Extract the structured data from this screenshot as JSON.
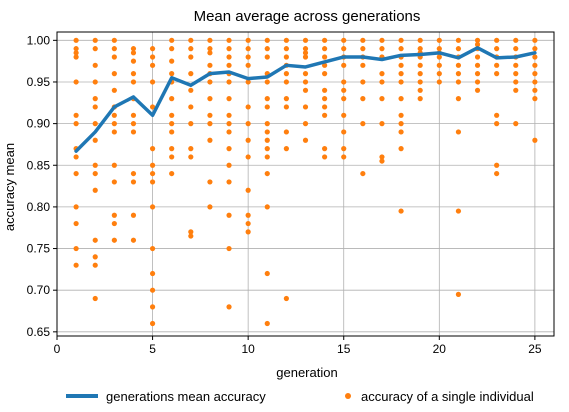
{
  "chart_data": {
    "type": "line",
    "title": "Mean average across generations",
    "xlabel": "generation",
    "ylabel": "accuracy mean",
    "xlim": [
      0,
      26
    ],
    "ylim": [
      0.645,
      1.01
    ],
    "xticks": [
      0,
      5,
      10,
      15,
      20,
      25
    ],
    "yticks": [
      0.65,
      0.7,
      0.75,
      0.8,
      0.85,
      0.9,
      0.95,
      1.0
    ],
    "xtick_labels": [
      "0",
      "5",
      "10",
      "15",
      "20",
      "25"
    ],
    "ytick_labels": [
      "0.65",
      "0.70",
      "0.75",
      "0.80",
      "0.85",
      "0.90",
      "0.95",
      "1.00"
    ],
    "grid": true,
    "legend": {
      "placement": "bottom",
      "entries": [
        "generations mean accuracy",
        "accuracy of a single individual"
      ]
    },
    "colors": {
      "mean_line": "#1f77b4",
      "individual": "#ff7f0e",
      "grid": "#b0b0b0"
    },
    "series": [
      {
        "name": "generations mean accuracy",
        "kind": "line",
        "x": [
          1,
          2,
          3,
          4,
          5,
          6,
          7,
          8,
          9,
          10,
          11,
          12,
          13,
          14,
          15,
          16,
          17,
          18,
          19,
          20,
          21,
          22,
          23,
          24,
          25
        ],
        "y": [
          0.867,
          0.89,
          0.92,
          0.932,
          0.91,
          0.955,
          0.946,
          0.96,
          0.962,
          0.954,
          0.956,
          0.97,
          0.968,
          0.974,
          0.98,
          0.98,
          0.977,
          0.982,
          0.983,
          0.985,
          0.979,
          0.991,
          0.979,
          0.98,
          0.985
        ]
      },
      {
        "name": "accuracy of a single individual",
        "kind": "scatter",
        "points": [
          [
            1,
            1.0
          ],
          [
            1,
            0.99
          ],
          [
            1,
            0.985
          ],
          [
            1,
            0.98
          ],
          [
            1,
            0.95
          ],
          [
            1,
            0.91
          ],
          [
            1,
            0.9
          ],
          [
            1,
            0.87
          ],
          [
            1,
            0.86
          ],
          [
            1,
            0.84
          ],
          [
            1,
            0.8
          ],
          [
            1,
            0.78
          ],
          [
            1,
            0.75
          ],
          [
            1,
            0.73
          ],
          [
            2,
            1.0
          ],
          [
            2,
            0.99
          ],
          [
            2,
            0.97
          ],
          [
            2,
            0.95
          ],
          [
            2,
            0.93
          ],
          [
            2,
            0.92
          ],
          [
            2,
            0.9
          ],
          [
            2,
            0.88
          ],
          [
            2,
            0.85
          ],
          [
            2,
            0.84
          ],
          [
            2,
            0.82
          ],
          [
            2,
            0.76
          ],
          [
            2,
            0.74
          ],
          [
            2,
            0.73
          ],
          [
            2,
            0.69
          ],
          [
            3,
            1.0
          ],
          [
            3,
            0.99
          ],
          [
            3,
            0.98
          ],
          [
            3,
            0.96
          ],
          [
            3,
            0.94
          ],
          [
            3,
            0.92
          ],
          [
            3,
            0.91
          ],
          [
            3,
            0.9
          ],
          [
            3,
            0.89
          ],
          [
            3,
            0.85
          ],
          [
            3,
            0.83
          ],
          [
            3,
            0.79
          ],
          [
            3,
            0.78
          ],
          [
            3,
            0.76
          ],
          [
            4,
            0.99
          ],
          [
            4,
            0.985
          ],
          [
            4,
            0.975
          ],
          [
            4,
            0.96
          ],
          [
            4,
            0.95
          ],
          [
            4,
            0.93
          ],
          [
            4,
            0.91
          ],
          [
            4,
            0.9
          ],
          [
            4,
            0.89
          ],
          [
            4,
            0.84
          ],
          [
            4,
            0.83
          ],
          [
            4,
            0.79
          ],
          [
            4,
            0.76
          ],
          [
            5,
            0.99
          ],
          [
            5,
            0.98
          ],
          [
            5,
            0.97
          ],
          [
            5,
            0.95
          ],
          [
            5,
            0.92
          ],
          [
            5,
            0.87
          ],
          [
            5,
            0.85
          ],
          [
            5,
            0.84
          ],
          [
            5,
            0.83
          ],
          [
            5,
            0.8
          ],
          [
            5,
            0.75
          ],
          [
            5,
            0.72
          ],
          [
            5,
            0.7
          ],
          [
            5,
            0.68
          ],
          [
            5,
            0.66
          ],
          [
            6,
            1.0
          ],
          [
            6,
            0.99
          ],
          [
            6,
            0.975
          ],
          [
            6,
            0.96
          ],
          [
            6,
            0.95
          ],
          [
            6,
            0.93
          ],
          [
            6,
            0.91
          ],
          [
            6,
            0.9
          ],
          [
            6,
            0.89
          ],
          [
            6,
            0.87
          ],
          [
            6,
            0.86
          ],
          [
            6,
            0.84
          ],
          [
            7,
            1.0
          ],
          [
            7,
            0.99
          ],
          [
            7,
            0.98
          ],
          [
            7,
            0.96
          ],
          [
            7,
            0.94
          ],
          [
            7,
            0.92
          ],
          [
            7,
            0.9
          ],
          [
            7,
            0.87
          ],
          [
            7,
            0.86
          ],
          [
            7,
            0.77
          ],
          [
            7,
            0.765
          ],
          [
            8,
            1.0
          ],
          [
            8,
            0.99
          ],
          [
            8,
            0.985
          ],
          [
            8,
            0.97
          ],
          [
            8,
            0.96
          ],
          [
            8,
            0.95
          ],
          [
            8,
            0.93
          ],
          [
            8,
            0.91
          ],
          [
            8,
            0.9
          ],
          [
            8,
            0.88
          ],
          [
            8,
            0.83
          ],
          [
            8,
            0.8
          ],
          [
            9,
            1.0
          ],
          [
            9,
            0.99
          ],
          [
            9,
            0.98
          ],
          [
            9,
            0.97
          ],
          [
            9,
            0.96
          ],
          [
            9,
            0.95
          ],
          [
            9,
            0.93
          ],
          [
            9,
            0.91
          ],
          [
            9,
            0.9
          ],
          [
            9,
            0.89
          ],
          [
            9,
            0.87
          ],
          [
            9,
            0.85
          ],
          [
            9,
            0.83
          ],
          [
            9,
            0.79
          ],
          [
            9,
            0.75
          ],
          [
            9,
            0.68
          ],
          [
            10,
            1.0
          ],
          [
            10,
            0.99
          ],
          [
            10,
            0.98
          ],
          [
            10,
            0.97
          ],
          [
            10,
            0.95
          ],
          [
            10,
            0.92
          ],
          [
            10,
            0.9
          ],
          [
            10,
            0.88
          ],
          [
            10,
            0.86
          ],
          [
            10,
            0.82
          ],
          [
            10,
            0.79
          ],
          [
            10,
            0.78
          ],
          [
            10,
            0.77
          ],
          [
            11,
            1.0
          ],
          [
            11,
            0.99
          ],
          [
            11,
            0.98
          ],
          [
            11,
            0.96
          ],
          [
            11,
            0.95
          ],
          [
            11,
            0.93
          ],
          [
            11,
            0.92
          ],
          [
            11,
            0.9
          ],
          [
            11,
            0.89
          ],
          [
            11,
            0.88
          ],
          [
            11,
            0.87
          ],
          [
            11,
            0.86
          ],
          [
            11,
            0.84
          ],
          [
            11,
            0.8
          ],
          [
            11,
            0.72
          ],
          [
            11,
            0.66
          ],
          [
            12,
            1.0
          ],
          [
            12,
            0.99
          ],
          [
            12,
            0.98
          ],
          [
            12,
            0.97
          ],
          [
            12,
            0.96
          ],
          [
            12,
            0.95
          ],
          [
            12,
            0.93
          ],
          [
            12,
            0.92
          ],
          [
            12,
            0.89
          ],
          [
            12,
            0.87
          ],
          [
            12,
            0.69
          ],
          [
            13,
            1.0
          ],
          [
            13,
            0.99
          ],
          [
            13,
            0.985
          ],
          [
            13,
            0.98
          ],
          [
            13,
            0.96
          ],
          [
            13,
            0.95
          ],
          [
            13,
            0.94
          ],
          [
            13,
            0.92
          ],
          [
            13,
            0.9
          ],
          [
            13,
            0.88
          ],
          [
            14,
            1.0
          ],
          [
            14,
            0.99
          ],
          [
            14,
            0.98
          ],
          [
            14,
            0.97
          ],
          [
            14,
            0.96
          ],
          [
            14,
            0.94
          ],
          [
            14,
            0.93
          ],
          [
            14,
            0.92
          ],
          [
            14,
            0.91
          ],
          [
            14,
            0.87
          ],
          [
            14,
            0.86
          ],
          [
            15,
            1.0
          ],
          [
            15,
            0.99
          ],
          [
            15,
            0.98
          ],
          [
            15,
            0.97
          ],
          [
            15,
            0.95
          ],
          [
            15,
            0.94
          ],
          [
            15,
            0.93
          ],
          [
            15,
            0.91
          ],
          [
            15,
            0.89
          ],
          [
            15,
            0.87
          ],
          [
            15,
            0.86
          ],
          [
            16,
            1.0
          ],
          [
            16,
            0.99
          ],
          [
            16,
            0.98
          ],
          [
            16,
            0.97
          ],
          [
            16,
            0.95
          ],
          [
            16,
            0.93
          ],
          [
            16,
            0.9
          ],
          [
            16,
            0.84
          ],
          [
            17,
            1.0
          ],
          [
            17,
            0.99
          ],
          [
            17,
            0.98
          ],
          [
            17,
            0.96
          ],
          [
            17,
            0.95
          ],
          [
            17,
            0.93
          ],
          [
            17,
            0.9
          ],
          [
            17,
            0.86
          ],
          [
            17,
            0.855
          ],
          [
            18,
            1.0
          ],
          [
            18,
            0.99
          ],
          [
            18,
            0.98
          ],
          [
            18,
            0.97
          ],
          [
            18,
            0.96
          ],
          [
            18,
            0.95
          ],
          [
            18,
            0.93
          ],
          [
            18,
            0.91
          ],
          [
            18,
            0.9
          ],
          [
            18,
            0.89
          ],
          [
            18,
            0.87
          ],
          [
            18,
            0.795
          ],
          [
            19,
            1.0
          ],
          [
            19,
            0.99
          ],
          [
            19,
            0.985
          ],
          [
            19,
            0.98
          ],
          [
            19,
            0.97
          ],
          [
            19,
            0.96
          ],
          [
            19,
            0.95
          ],
          [
            19,
            0.94
          ],
          [
            19,
            0.93
          ],
          [
            20,
            1.0
          ],
          [
            20,
            0.99
          ],
          [
            20,
            0.985
          ],
          [
            20,
            0.98
          ],
          [
            20,
            0.97
          ],
          [
            20,
            0.96
          ],
          [
            20,
            0.95
          ],
          [
            21,
            1.0
          ],
          [
            21,
            0.99
          ],
          [
            21,
            0.98
          ],
          [
            21,
            0.97
          ],
          [
            21,
            0.96
          ],
          [
            21,
            0.95
          ],
          [
            21,
            0.93
          ],
          [
            21,
            0.89
          ],
          [
            21,
            0.795
          ],
          [
            21,
            0.695
          ],
          [
            22,
            1.0
          ],
          [
            22,
            0.995
          ],
          [
            22,
            0.99
          ],
          [
            22,
            0.98
          ],
          [
            22,
            0.97
          ],
          [
            22,
            0.96
          ],
          [
            22,
            0.95
          ],
          [
            22,
            0.94
          ],
          [
            23,
            1.0
          ],
          [
            23,
            0.99
          ],
          [
            23,
            0.98
          ],
          [
            23,
            0.97
          ],
          [
            23,
            0.96
          ],
          [
            23,
            0.91
          ],
          [
            23,
            0.9
          ],
          [
            23,
            0.85
          ],
          [
            23,
            0.84
          ],
          [
            24,
            1.0
          ],
          [
            24,
            0.99
          ],
          [
            24,
            0.98
          ],
          [
            24,
            0.97
          ],
          [
            24,
            0.96
          ],
          [
            24,
            0.95
          ],
          [
            24,
            0.94
          ],
          [
            24,
            0.9
          ],
          [
            25,
            1.0
          ],
          [
            25,
            0.99
          ],
          [
            25,
            0.98
          ],
          [
            25,
            0.97
          ],
          [
            25,
            0.96
          ],
          [
            25,
            0.95
          ],
          [
            25,
            0.94
          ],
          [
            25,
            0.93
          ],
          [
            25,
            0.88
          ]
        ]
      }
    ]
  }
}
